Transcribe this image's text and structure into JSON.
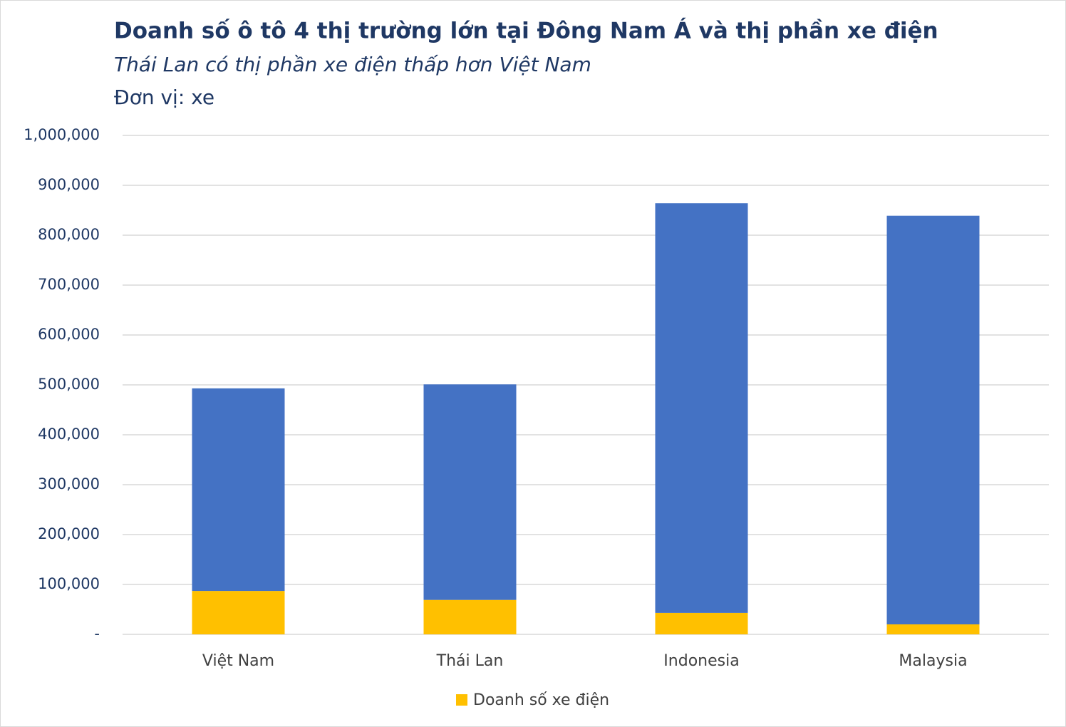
{
  "chart_data": {
    "type": "stacked_bar",
    "title": "Doanh số ô tô 4 thị trường lớn tại Đông Nam Á và thị phần xe điện",
    "subtitle": "Thái Lan có thị phần xe điện thấp hơn Việt Nam",
    "unit_label": "Đơn vị: xe",
    "categories": [
      "Việt Nam",
      "Thái Lan",
      "Indonesia",
      "Malaysia"
    ],
    "series": [
      {
        "name": "Doanh số xe điện",
        "color": "#ffc000",
        "values": [
          87000,
          69000,
          43000,
          20000
        ]
      },
      {
        "color": "#4472c4",
        "values": [
          406000,
          432000,
          821000,
          819000
        ]
      }
    ],
    "ylim": [
      0,
      1000000
    ],
    "yticks": [
      {
        "value": 0,
        "label": "-"
      },
      {
        "value": 100000,
        "label": "100,000"
      },
      {
        "value": 200000,
        "label": "200,000"
      },
      {
        "value": 300000,
        "label": "300,000"
      },
      {
        "value": 400000,
        "label": "400,000"
      },
      {
        "value": 500000,
        "label": "500,000"
      },
      {
        "value": 600000,
        "label": "600,000"
      },
      {
        "value": 700000,
        "label": "700,000"
      },
      {
        "value": 800000,
        "label": "800,000"
      },
      {
        "value": 900000,
        "label": "900,000"
      },
      {
        "value": 1000000,
        "label": "1,000,000"
      }
    ],
    "grid": true,
    "legend": "bottom"
  }
}
